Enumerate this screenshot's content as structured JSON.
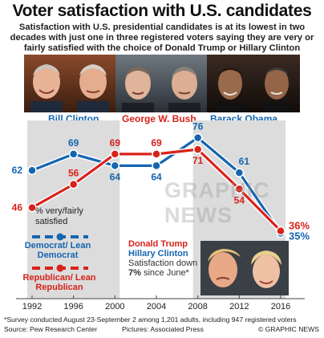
{
  "title": "Voter satisfaction with U.S. candidates",
  "subtitle": "Satisfaction with U.S. presidential candidates is at its lowest in two decades with just one in three registered voters saying they are very or fairly satisfied with the choice of Donald Trump or Hillary Clinton",
  "candidates": [
    {
      "name": "Bill Clinton",
      "color": "#1565b0"
    },
    {
      "name": "George W. Bush",
      "color": "#d8221a"
    },
    {
      "name": "Barack Obama",
      "color": "#1565b0"
    }
  ],
  "legend": {
    "measure": "% very/fairly satisfied",
    "dem": "Democrat/ Lean Democrat",
    "rep": "Republican/ Lean Republican"
  },
  "matchup": {
    "trump": "Donald Trump",
    "clinton": "Hillary Clinton",
    "note_pre": "Satisfaction down",
    "note_value": "7%",
    "note_post": "since June*"
  },
  "watermark": "GRAPHIC NEWS",
  "footnote": "*Survey conducted August 23-September 2 among 1,201 adults, including 947 registered voters",
  "source": "Source: Pew Research Center",
  "pictures": "Pictures: Associated Press",
  "credit": "© GRAPHIC NEWS",
  "colors": {
    "democrat": "#1565b0",
    "republican": "#d8221a",
    "shade": "#dcdcdc"
  },
  "chart_data": {
    "type": "line",
    "x": [
      1992,
      1996,
      2000,
      2004,
      2008,
      2012,
      2016
    ],
    "series": [
      {
        "name": "Democrat/ Lean Democrat",
        "values": [
          62,
          69,
          64,
          64,
          76,
          61,
          35
        ]
      },
      {
        "name": "Republican/ Lean Republican",
        "values": [
          46,
          56,
          69,
          69,
          71,
          54,
          36
        ]
      }
    ],
    "labels": {
      "dem": [
        "62",
        "69",
        "64",
        "64",
        "76",
        "61",
        "35%"
      ],
      "rep": [
        "46",
        "56",
        "69",
        "69",
        "71",
        "54",
        "36%"
      ]
    },
    "ylim": [
      30,
      80
    ],
    "shaded_periods": [
      [
        1992,
        2000
      ],
      [
        2008,
        2016
      ]
    ]
  }
}
